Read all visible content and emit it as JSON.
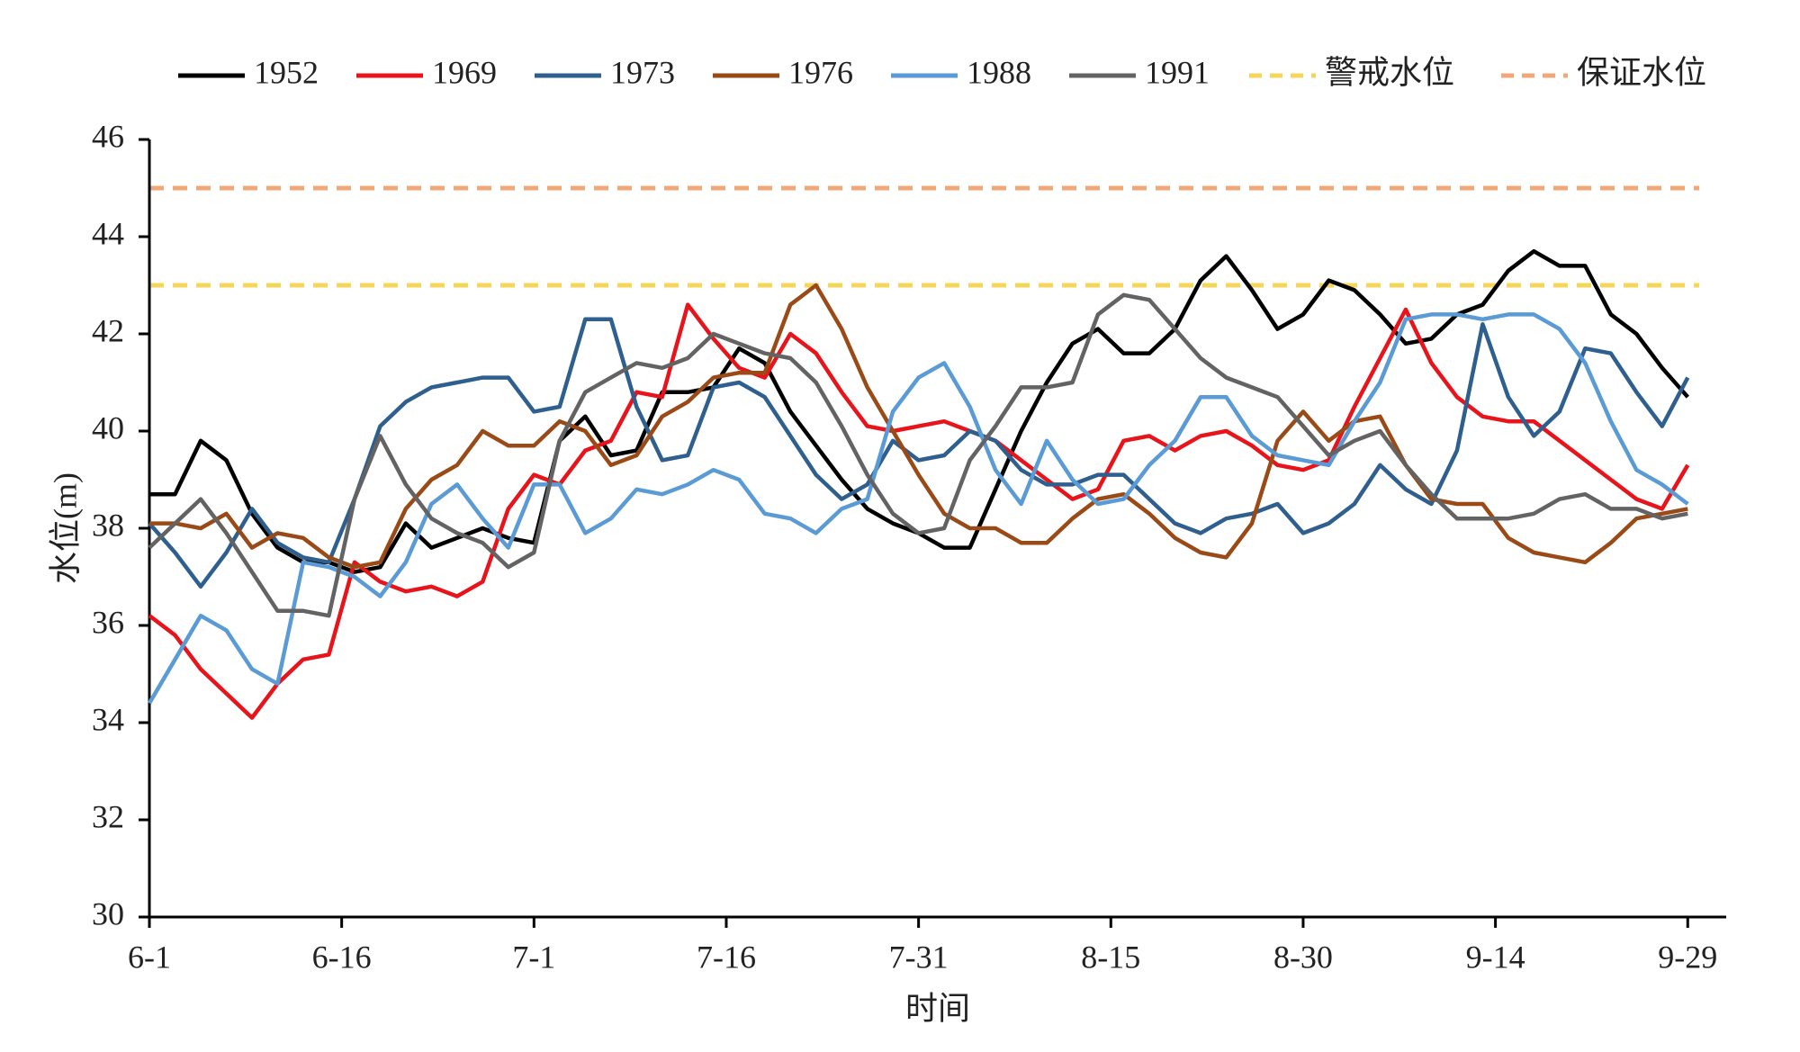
{
  "chart_data": {
    "type": "line",
    "x_label": "时间",
    "y_label": "水位(m)",
    "x": [
      0,
      2,
      4,
      6,
      8,
      10,
      12,
      14,
      16,
      18,
      20,
      22,
      24,
      26,
      28,
      30,
      32,
      34,
      36,
      38,
      40,
      42,
      44,
      46,
      48,
      50,
      52,
      54,
      56,
      58,
      60,
      62,
      64,
      66,
      68,
      70,
      72,
      74,
      76,
      78,
      80,
      82,
      84,
      86,
      88,
      90,
      92,
      94,
      96,
      98,
      100,
      102,
      104,
      106,
      108,
      110,
      112,
      114,
      116,
      118,
      120
    ],
    "xlim": [
      0,
      123
    ],
    "xticks": [
      {
        "value": 0,
        "label": "6-1"
      },
      {
        "value": 15,
        "label": "6-16"
      },
      {
        "value": 30,
        "label": "7-1"
      },
      {
        "value": 45,
        "label": "7-16"
      },
      {
        "value": 60,
        "label": "7-31"
      },
      {
        "value": 75,
        "label": "8-15"
      },
      {
        "value": 90,
        "label": "8-30"
      },
      {
        "value": 105,
        "label": "9-14"
      },
      {
        "value": 120,
        "label": "9-29"
      }
    ],
    "ylim": [
      30,
      46
    ],
    "yticks": [
      30,
      32,
      34,
      36,
      38,
      40,
      42,
      44,
      46
    ],
    "series": [
      {
        "name": "1952",
        "color": "#000000",
        "values": [
          38.7,
          38.7,
          39.8,
          39.4,
          38.3,
          37.6,
          37.3,
          37.3,
          37.1,
          37.2,
          38.1,
          37.6,
          37.8,
          38.0,
          37.8,
          37.7,
          39.8,
          40.3,
          39.5,
          39.6,
          40.8,
          40.8,
          40.9,
          41.7,
          41.4,
          40.4,
          39.7,
          39.0,
          38.4,
          38.1,
          37.9,
          37.6,
          37.6,
          38.8,
          40.0,
          41.0,
          41.8,
          42.1,
          41.6,
          41.6,
          42.1,
          43.1,
          43.6,
          42.9,
          42.1,
          42.4,
          43.1,
          42.9,
          42.4,
          41.8,
          41.9,
          42.4,
          42.6,
          43.3,
          43.7,
          43.4,
          43.4,
          42.4,
          42.0,
          41.3,
          40.7
        ]
      },
      {
        "name": "1969",
        "color": "#e8141b",
        "values": [
          36.2,
          35.8,
          35.1,
          34.6,
          34.1,
          34.8,
          35.3,
          35.4,
          37.3,
          36.9,
          36.7,
          36.8,
          36.6,
          36.9,
          38.4,
          39.1,
          38.9,
          39.6,
          39.8,
          40.8,
          40.7,
          42.6,
          41.9,
          41.3,
          41.1,
          42.0,
          41.6,
          40.8,
          40.1,
          40.0,
          40.1,
          40.2,
          40.0,
          39.8,
          39.4,
          39.0,
          38.6,
          38.8,
          39.8,
          39.9,
          39.6,
          39.9,
          40.0,
          39.7,
          39.3,
          39.2,
          39.4,
          40.5,
          41.5,
          42.5,
          41.4,
          40.7,
          40.3,
          40.2,
          40.2,
          39.8,
          39.4,
          39.0,
          38.6,
          38.4,
          39.3
        ]
      },
      {
        "name": "1973",
        "color": "#2e5f8e",
        "values": [
          38.1,
          37.5,
          36.8,
          37.5,
          38.4,
          37.7,
          37.4,
          37.3,
          38.6,
          40.1,
          40.6,
          40.9,
          41.0,
          41.1,
          41.1,
          40.4,
          40.5,
          42.3,
          42.3,
          40.5,
          39.4,
          39.5,
          40.9,
          41.0,
          40.7,
          39.9,
          39.1,
          38.6,
          38.9,
          39.8,
          39.4,
          39.5,
          40.0,
          39.8,
          39.2,
          38.9,
          38.9,
          39.1,
          39.1,
          38.6,
          38.1,
          37.9,
          38.2,
          38.3,
          38.5,
          37.9,
          38.1,
          38.5,
          39.3,
          38.8,
          38.5,
          39.6,
          42.2,
          40.7,
          39.9,
          40.4,
          41.7,
          41.6,
          40.8,
          40.1,
          41.1
        ]
      },
      {
        "name": "1976",
        "color": "#9a4a16",
        "values": [
          38.1,
          38.1,
          38.0,
          38.3,
          37.6,
          37.9,
          37.8,
          37.4,
          37.2,
          37.3,
          38.4,
          39.0,
          39.3,
          40.0,
          39.7,
          39.7,
          40.2,
          40.0,
          39.3,
          39.5,
          40.3,
          40.6,
          41.1,
          41.2,
          41.2,
          42.6,
          43.0,
          42.1,
          40.9,
          40.0,
          39.1,
          38.3,
          38.0,
          38.0,
          37.7,
          37.7,
          38.2,
          38.6,
          38.7,
          38.3,
          37.8,
          37.5,
          37.4,
          38.1,
          39.8,
          40.4,
          39.8,
          40.2,
          40.3,
          39.3,
          38.6,
          38.5,
          38.5,
          37.8,
          37.5,
          37.4,
          37.3,
          37.7,
          38.2,
          38.3,
          38.4
        ]
      },
      {
        "name": "1988",
        "color": "#5b9bd5",
        "values": [
          34.4,
          35.3,
          36.2,
          35.9,
          35.1,
          34.8,
          37.3,
          37.2,
          37.0,
          36.6,
          37.3,
          38.5,
          38.9,
          38.2,
          37.6,
          38.9,
          38.9,
          37.9,
          38.2,
          38.8,
          38.7,
          38.9,
          39.2,
          39.0,
          38.3,
          38.2,
          37.9,
          38.4,
          38.6,
          40.4,
          41.1,
          41.4,
          40.5,
          39.2,
          38.5,
          39.8,
          39.0,
          38.5,
          38.6,
          39.3,
          39.8,
          40.7,
          40.7,
          39.9,
          39.5,
          39.4,
          39.3,
          40.2,
          41.0,
          42.3,
          42.4,
          42.4,
          42.3,
          42.4,
          42.4,
          42.1,
          41.4,
          40.2,
          39.2,
          38.9,
          38.5
        ]
      },
      {
        "name": "1991",
        "color": "#636363",
        "values": [
          37.6,
          38.1,
          38.6,
          37.9,
          37.1,
          36.3,
          36.3,
          36.2,
          38.6,
          39.9,
          38.9,
          38.2,
          37.9,
          37.7,
          37.2,
          37.5,
          39.8,
          40.8,
          41.1,
          41.4,
          41.3,
          41.5,
          42.0,
          41.8,
          41.6,
          41.5,
          41.0,
          40.1,
          39.1,
          38.3,
          37.9,
          38.0,
          39.4,
          40.1,
          40.9,
          40.9,
          41.0,
          42.4,
          42.8,
          42.7,
          42.1,
          41.5,
          41.1,
          40.9,
          40.7,
          40.1,
          39.5,
          39.8,
          40.0,
          39.3,
          38.7,
          38.2,
          38.2,
          38.2,
          38.3,
          38.6,
          38.7,
          38.4,
          38.4,
          38.2,
          38.3
        ]
      }
    ],
    "reference_lines": [
      {
        "name": "警戒水位",
        "value": 43,
        "color": "#f5d55a"
      },
      {
        "name": "保证水位",
        "value": 45,
        "color": "#f0a878"
      }
    ]
  }
}
